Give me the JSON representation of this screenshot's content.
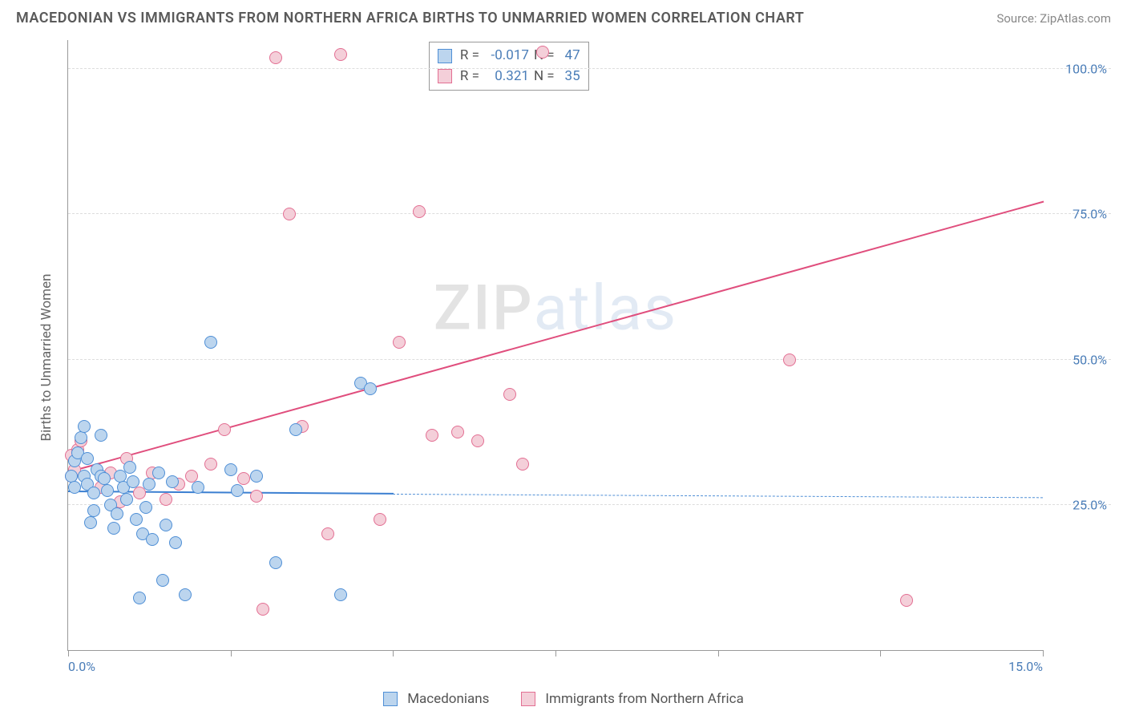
{
  "header": {
    "title": "MACEDONIAN VS IMMIGRANTS FROM NORTHERN AFRICA BIRTHS TO UNMARRIED WOMEN CORRELATION CHART",
    "source": "Source: ZipAtlas.com"
  },
  "watermark": {
    "part1": "ZIP",
    "part2": "atlas"
  },
  "chart": {
    "type": "scatter",
    "ylabel": "Births to Unmarried Women",
    "xlim": [
      0,
      15
    ],
    "ylim": [
      0,
      105
    ],
    "x_ticks": [
      0,
      2.5,
      5,
      7.5,
      10,
      12.5,
      15
    ],
    "x_tick_labels_shown": {
      "0": "0.0%",
      "15": "15.0%"
    },
    "y_ticks": [
      25,
      50,
      75,
      100
    ],
    "y_tick_labels": [
      "25.0%",
      "50.0%",
      "75.0%",
      "100.0%"
    ],
    "background_color": "#ffffff",
    "grid_color": "#dddddd",
    "axis_color": "#999999",
    "tick_label_color": "#4a7db8",
    "label_fontsize": 17,
    "title_fontsize": 18,
    "marker_radius": 8,
    "marker_border_width": 1.5,
    "line_width": 2
  },
  "series": {
    "blue": {
      "label": "Macedonians",
      "fill": "#bcd5ee",
      "stroke": "#4f8fd6",
      "line_color": "#3b7fd1",
      "R": "-0.017",
      "N": "47",
      "trend": {
        "x1": 0.0,
        "y1": 27.2,
        "x2": 5.0,
        "y2": 26.8,
        "dash_to_x": 15.0,
        "dash_to_y": 26.2
      },
      "points": [
        [
          0.05,
          30.0
        ],
        [
          0.1,
          32.5
        ],
        [
          0.1,
          28.0
        ],
        [
          0.15,
          34.0
        ],
        [
          0.2,
          36.5
        ],
        [
          0.25,
          38.5
        ],
        [
          0.25,
          30.0
        ],
        [
          0.3,
          28.5
        ],
        [
          0.3,
          33.0
        ],
        [
          0.35,
          22.0
        ],
        [
          0.4,
          27.0
        ],
        [
          0.4,
          24.0
        ],
        [
          0.45,
          31.0
        ],
        [
          0.5,
          30.0
        ],
        [
          0.5,
          37.0
        ],
        [
          0.55,
          29.5
        ],
        [
          0.6,
          27.5
        ],
        [
          0.65,
          25.0
        ],
        [
          0.7,
          21.0
        ],
        [
          0.75,
          23.5
        ],
        [
          0.8,
          30.0
        ],
        [
          0.85,
          28.0
        ],
        [
          0.9,
          26.0
        ],
        [
          0.95,
          31.5
        ],
        [
          1.0,
          29.0
        ],
        [
          1.05,
          22.5
        ],
        [
          1.1,
          9.0
        ],
        [
          1.15,
          20.0
        ],
        [
          1.2,
          24.5
        ],
        [
          1.25,
          28.5
        ],
        [
          1.3,
          19.0
        ],
        [
          1.4,
          30.5
        ],
        [
          1.45,
          12.0
        ],
        [
          1.5,
          21.5
        ],
        [
          1.6,
          29.0
        ],
        [
          1.65,
          18.5
        ],
        [
          1.8,
          9.5
        ],
        [
          2.0,
          28.0
        ],
        [
          2.2,
          53.0
        ],
        [
          2.5,
          31.0
        ],
        [
          2.6,
          27.5
        ],
        [
          2.9,
          30.0
        ],
        [
          3.2,
          15.0
        ],
        [
          3.5,
          38.0
        ],
        [
          4.2,
          9.5
        ],
        [
          4.5,
          46.0
        ],
        [
          4.65,
          45.0
        ]
      ]
    },
    "pink": {
      "label": "Immigants from Northern Africa",
      "label_display": "Immigrants from Northern Africa",
      "fill": "#f4cfd9",
      "stroke": "#e36f93",
      "line_color": "#e04e7d",
      "R": "0.321",
      "N": "35",
      "trend": {
        "x1": 0.0,
        "y1": 30.5,
        "x2": 15.0,
        "y2": 77.0
      },
      "points": [
        [
          0.05,
          30.0
        ],
        [
          0.05,
          33.5
        ],
        [
          0.1,
          31.0
        ],
        [
          0.15,
          34.5
        ],
        [
          0.2,
          36.0
        ],
        [
          0.5,
          28.0
        ],
        [
          0.65,
          30.5
        ],
        [
          0.8,
          25.5
        ],
        [
          0.9,
          33.0
        ],
        [
          1.1,
          27.0
        ],
        [
          1.3,
          30.5
        ],
        [
          1.5,
          26.0
        ],
        [
          1.7,
          28.5
        ],
        [
          1.9,
          30.0
        ],
        [
          2.2,
          32.0
        ],
        [
          2.4,
          38.0
        ],
        [
          2.7,
          29.5
        ],
        [
          2.9,
          26.5
        ],
        [
          3.0,
          7.0
        ],
        [
          3.2,
          102.0
        ],
        [
          3.4,
          75.0
        ],
        [
          3.6,
          38.5
        ],
        [
          4.0,
          20.0
        ],
        [
          4.2,
          102.5
        ],
        [
          4.8,
          22.5
        ],
        [
          5.1,
          53.0
        ],
        [
          5.4,
          75.5
        ],
        [
          5.6,
          37.0
        ],
        [
          6.0,
          37.5
        ],
        [
          6.3,
          36.0
        ],
        [
          6.8,
          44.0
        ],
        [
          7.0,
          32.0
        ],
        [
          7.3,
          103.0
        ],
        [
          11.1,
          50.0
        ],
        [
          12.9,
          8.5
        ]
      ]
    }
  },
  "legend_stats_labels": {
    "R": "R =",
    "N": "N ="
  }
}
